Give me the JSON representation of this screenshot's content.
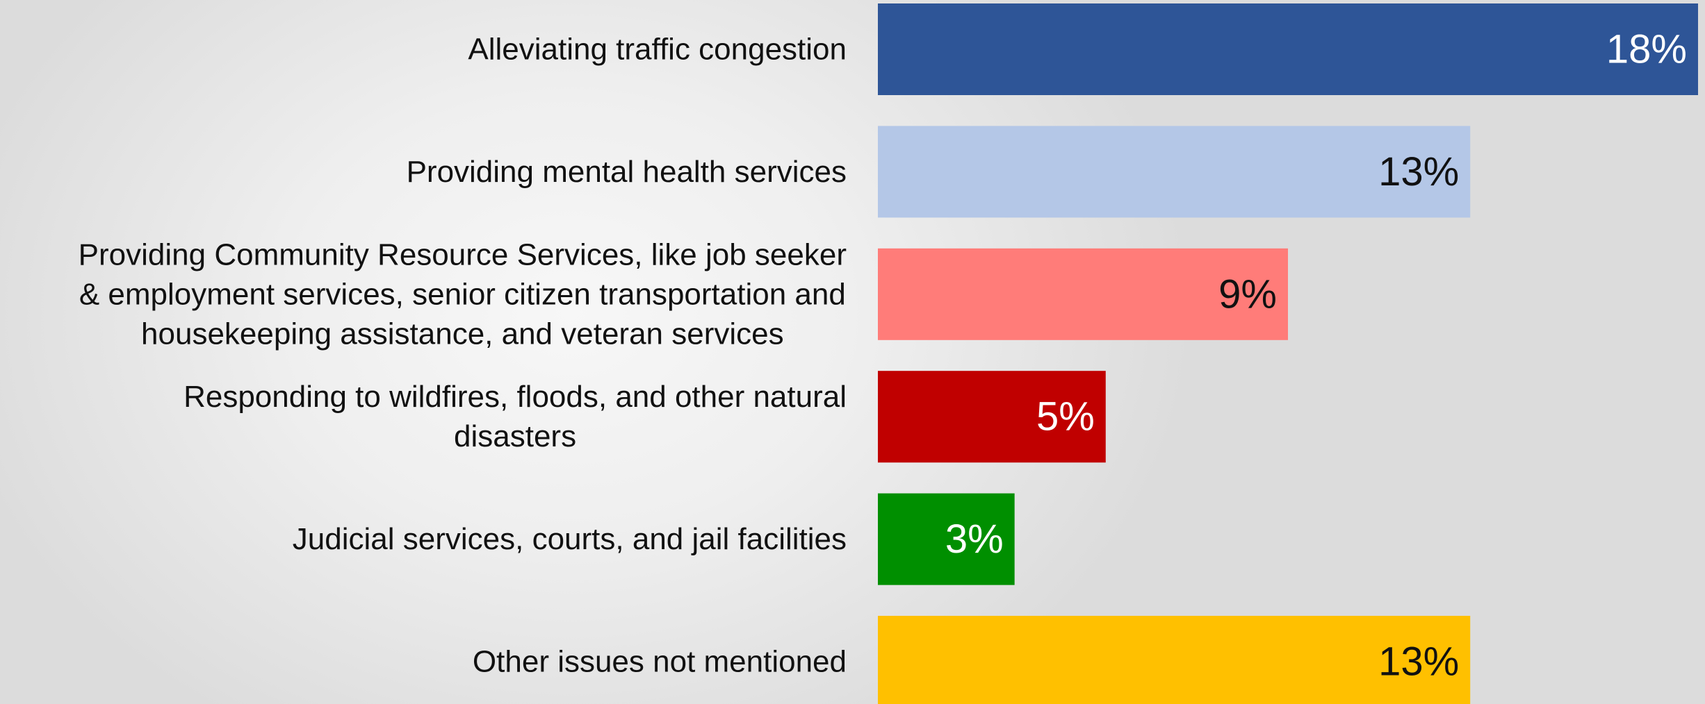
{
  "chart_data": {
    "type": "bar",
    "orientation": "horizontal",
    "categories": [
      "Alleviating traffic congestion",
      "Providing mental health services",
      "Providing Community Resource Services, like job seeker & employment services, senior citizen transportation and housekeeping assistance, and veteran services",
      "Responding to wildfires, floods, and other natural disasters",
      "Judicial services, courts, and jail facilities",
      "Other issues not mentioned"
    ],
    "category_lines": [
      [
        "Alleviating traffic congestion"
      ],
      [
        "Providing mental health services"
      ],
      [
        "Providing Community Resource Services, like job seeker",
        "& employment services, senior citizen transportation and",
        "housekeeping assistance, and veteran services"
      ],
      [
        "Responding to wildfires, floods, and other natural",
        "disasters"
      ],
      [
        "Judicial services, courts, and jail facilities"
      ],
      [
        "Other issues not mentioned"
      ]
    ],
    "values": [
      18,
      13,
      9,
      5,
      3,
      13
    ],
    "value_labels": [
      "18%",
      "13%",
      "9%",
      "5%",
      "3%",
      "13%"
    ],
    "bar_colors": [
      "#2e5597",
      "#b4c7e7",
      "#ff7c79",
      "#c00000",
      "#008f00",
      "#ffc000"
    ],
    "label_colors": [
      "#ffffff",
      "#111111",
      "#111111",
      "#ffffff",
      "#ffffff",
      "#111111"
    ],
    "xlim": [
      0,
      18
    ],
    "grid": false,
    "legend": "none"
  }
}
